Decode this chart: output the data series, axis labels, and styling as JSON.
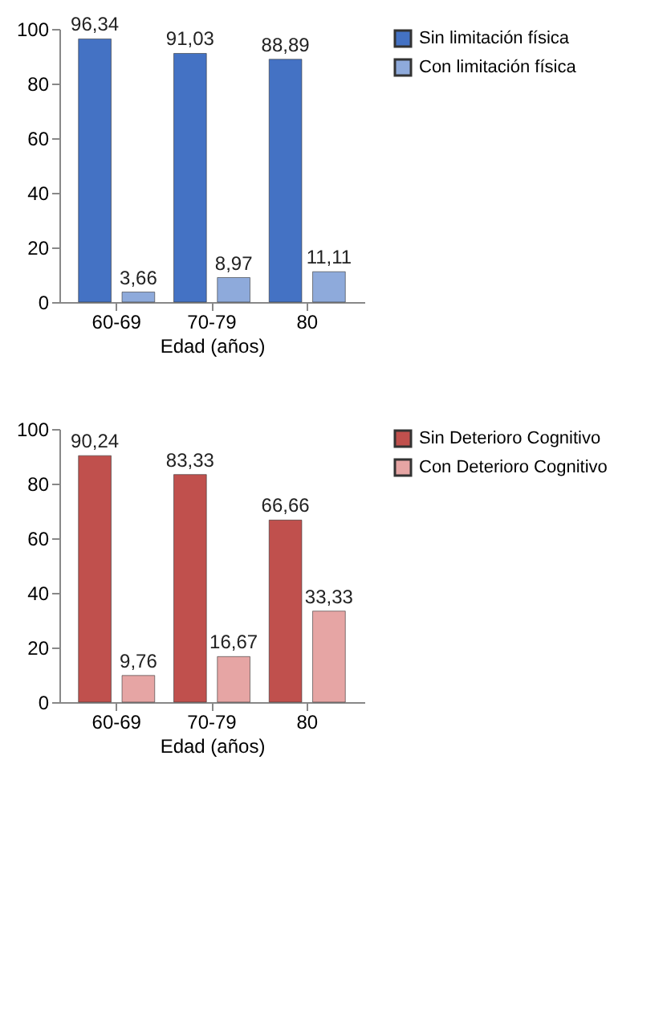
{
  "chart_data": [
    {
      "type": "bar",
      "categories": [
        "60-69",
        "70-79",
        "80"
      ],
      "xlabel": "Edad (años)",
      "ylim": [
        0,
        100
      ],
      "yticks": [
        0,
        20,
        40,
        60,
        80,
        100
      ],
      "legend": "right",
      "series": [
        {
          "name": "Sin limitación física",
          "color": "#4472c4",
          "values": [
            96.34,
            91.03,
            88.89
          ],
          "value_labels": [
            "96,34",
            "91,03",
            "88,89"
          ]
        },
        {
          "name": "Con limitación física",
          "color": "#8eaadb",
          "values": [
            3.66,
            8.97,
            11.11
          ],
          "value_labels": [
            "3,66",
            "8,97",
            "11,11"
          ]
        }
      ]
    },
    {
      "type": "bar",
      "categories": [
        "60-69",
        "70-79",
        "80"
      ],
      "xlabel": "Edad (años)",
      "ylim": [
        0,
        100
      ],
      "yticks": [
        0,
        20,
        40,
        60,
        80,
        100
      ],
      "legend": "right",
      "series": [
        {
          "name": "Sin Deterioro Cognitivo",
          "color": "#c0504d",
          "values": [
            90.24,
            83.33,
            66.66
          ],
          "value_labels": [
            "90,24",
            "83,33",
            "66,66"
          ]
        },
        {
          "name": "Con Deterioro Cognitivo",
          "color": "#e6a5a4",
          "values": [
            9.76,
            16.67,
            33.33
          ],
          "value_labels": [
            "9,76",
            "16,67",
            "33,33"
          ]
        }
      ]
    }
  ]
}
